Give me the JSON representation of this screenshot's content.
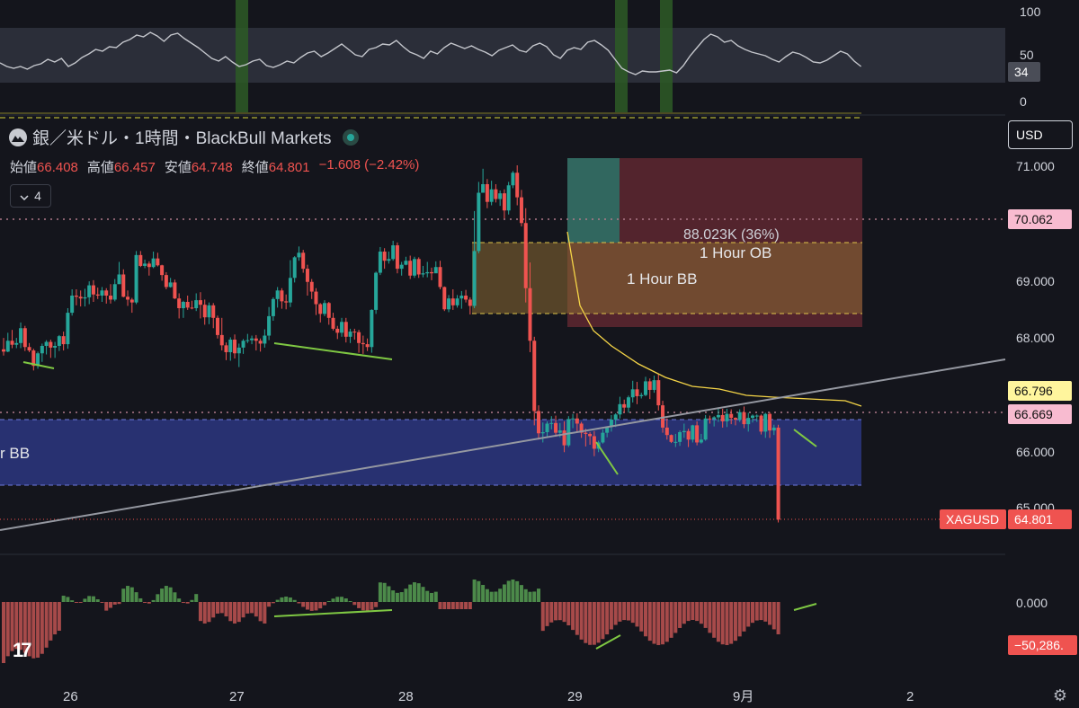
{
  "header": {
    "title": "銀／米ドル・1時間・BlackBull Markets",
    "ohlc": [
      {
        "label": "始値",
        "value": "66.408"
      },
      {
        "label": "高値",
        "value": "66.457"
      },
      {
        "label": "安値",
        "value": "64.748"
      },
      {
        "label": "終値",
        "value": "64.801"
      },
      {
        "label": "",
        "value": "−1.608 (−2.42%)"
      }
    ],
    "indicator_count": "4",
    "currency": "USD"
  },
  "chart_data": {
    "type": "candlestick",
    "symbol": "XAGUSD",
    "last_price": "64.801",
    "price_axis_ticks": [
      "71.000",
      "70.000",
      "69.000",
      "68.000",
      "66.000",
      "65.000"
    ],
    "price_badges": [
      {
        "text": "70.062",
        "value": 70.062,
        "color": "#f8bbd0",
        "text_color": "#111"
      },
      {
        "text": "66.796",
        "value": 66.796,
        "color": "#fff59d",
        "text_color": "#111"
      },
      {
        "text": "66.669",
        "value": 66.669,
        "color": "#f8bbd0",
        "text_color": "#111"
      }
    ],
    "x_ticks": [
      "26",
      "27",
      "28",
      "29",
      "9月",
      "2"
    ],
    "annotations": {
      "position_label": "88.023K (36%)",
      "ob_label": "1 Hour OB",
      "bb_label": "1 Hour BB",
      "lower_bb_label": "r BB"
    },
    "rsi": {
      "ticks": [
        "100",
        "50",
        "0"
      ],
      "last": "34"
    },
    "histogram": {
      "ticks": [
        "0.000"
      ],
      "last": "−50,286."
    },
    "candles": [
      [
        67.78,
        67.74,
        67.98,
        67.67
      ],
      [
        67.74,
        67.93,
        68.07,
        67.73
      ],
      [
        67.93,
        67.86,
        68.12,
        67.8
      ],
      [
        67.86,
        67.89,
        67.98,
        67.8
      ],
      [
        67.89,
        68.15,
        68.25,
        67.8
      ],
      [
        68.15,
        67.82,
        68.19,
        67.75
      ],
      [
        67.82,
        67.76,
        67.89,
        67.73
      ],
      [
        67.76,
        67.49,
        67.79,
        67.41
      ],
      [
        67.49,
        67.71,
        67.74,
        67.44
      ],
      [
        67.71,
        67.84,
        67.88,
        67.56
      ],
      [
        67.84,
        67.91,
        67.94,
        67.69
      ],
      [
        67.91,
        67.81,
        67.95,
        67.63
      ],
      [
        67.81,
        67.84,
        67.91,
        67.63
      ],
      [
        67.84,
        68.01,
        68.03,
        67.75
      ],
      [
        68.01,
        67.87,
        68.09,
        67.76
      ],
      [
        67.87,
        68.42,
        68.5,
        67.79
      ],
      [
        68.42,
        68.72,
        68.83,
        68.37
      ],
      [
        68.72,
        68.7,
        68.83,
        68.55
      ],
      [
        68.7,
        68.67,
        68.81,
        68.53
      ],
      [
        68.67,
        68.69,
        68.84,
        68.53
      ],
      [
        68.69,
        68.9,
        68.97,
        68.57
      ],
      [
        68.9,
        68.74,
        68.99,
        68.61
      ],
      [
        68.74,
        68.72,
        68.86,
        68.66
      ],
      [
        68.72,
        68.81,
        68.87,
        68.61
      ],
      [
        68.81,
        68.72,
        68.85,
        68.58
      ],
      [
        68.72,
        68.65,
        68.92,
        68.58
      ],
      [
        68.65,
        68.92,
        69.01,
        68.62
      ],
      [
        68.92,
        69.09,
        69.31,
        68.99
      ],
      [
        69.09,
        68.7,
        69.18,
        68.69
      ],
      [
        68.7,
        68.65,
        68.81,
        68.54
      ],
      [
        68.65,
        68.6,
        68.68,
        68.42
      ],
      [
        68.6,
        69.43,
        69.5,
        68.57
      ],
      [
        69.43,
        69.24,
        69.5,
        69.22
      ],
      [
        69.24,
        69.28,
        69.35,
        69.2
      ],
      [
        69.28,
        69.22,
        69.32,
        69.07
      ],
      [
        69.22,
        69.37,
        69.49,
        69.2
      ],
      [
        69.37,
        69.25,
        69.47,
        69.23
      ],
      [
        69.25,
        69.08,
        69.26,
        68.98
      ],
      [
        69.08,
        68.87,
        69.13,
        68.83
      ],
      [
        68.87,
        68.95,
        69.03,
        68.86
      ],
      [
        68.95,
        68.67,
        69.0,
        68.66
      ],
      [
        68.67,
        68.5,
        68.76,
        68.32
      ],
      [
        68.5,
        68.61,
        68.63,
        68.33
      ],
      [
        68.61,
        68.51,
        68.72,
        68.47
      ],
      [
        68.51,
        68.5,
        68.63,
        68.48
      ],
      [
        68.5,
        68.64,
        68.76,
        68.45
      ],
      [
        68.64,
        68.56,
        68.78,
        68.32
      ],
      [
        68.56,
        68.34,
        68.65,
        68.21
      ],
      [
        68.34,
        68.55,
        68.6,
        68.22
      ],
      [
        68.55,
        68.33,
        68.59,
        68.15
      ],
      [
        68.33,
        68.03,
        68.37,
        67.97
      ],
      [
        68.03,
        67.85,
        68.33,
        67.76
      ],
      [
        67.85,
        67.73,
        67.9,
        67.59
      ],
      [
        67.73,
        67.95,
        67.99,
        67.58
      ],
      [
        67.95,
        67.71,
        68.04,
        67.62
      ],
      [
        67.71,
        67.81,
        67.88,
        67.47
      ],
      [
        67.81,
        67.93,
        67.96,
        67.7
      ],
      [
        67.93,
        67.94,
        68.05,
        67.89
      ],
      [
        67.94,
        67.97,
        68.02,
        67.87
      ],
      [
        67.97,
        67.93,
        68.03,
        67.76
      ],
      [
        67.93,
        67.88,
        67.97,
        67.74
      ],
      [
        67.88,
        68.02,
        68.13,
        67.81
      ],
      [
        68.02,
        68.36,
        68.52,
        67.94
      ],
      [
        68.36,
        68.66,
        68.69,
        68.28
      ],
      [
        68.66,
        68.81,
        68.87,
        68.51
      ],
      [
        68.81,
        68.62,
        68.85,
        68.49
      ],
      [
        68.62,
        68.6,
        68.74,
        68.48
      ],
      [
        68.6,
        69.03,
        69.34,
        68.52
      ],
      [
        69.03,
        69.39,
        69.41,
        68.95
      ],
      [
        69.39,
        69.47,
        69.58,
        69.33
      ],
      [
        69.47,
        69.19,
        69.52,
        69.12
      ],
      [
        69.19,
        68.96,
        69.26,
        68.72
      ],
      [
        68.96,
        68.79,
        69.01,
        68.66
      ],
      [
        68.79,
        68.57,
        68.85,
        68.38
      ],
      [
        68.57,
        68.4,
        68.59,
        68.25
      ],
      [
        68.4,
        68.59,
        68.64,
        68.36
      ],
      [
        68.59,
        68.33,
        68.61,
        68.21
      ],
      [
        68.33,
        68.14,
        68.42,
        68.11
      ],
      [
        68.14,
        68.07,
        68.19,
        67.96
      ],
      [
        68.07,
        68.26,
        68.33,
        68.0
      ],
      [
        68.26,
        68.0,
        68.33,
        67.9
      ],
      [
        68.0,
        68.09,
        68.14,
        67.89
      ],
      [
        68.09,
        68.08,
        68.14,
        67.95
      ],
      [
        68.08,
        67.89,
        68.12,
        67.72
      ],
      [
        67.89,
        67.87,
        68.02,
        67.7
      ],
      [
        67.87,
        67.82,
        67.97,
        67.75
      ],
      [
        67.82,
        68.47,
        68.48,
        67.72
      ],
      [
        68.47,
        69.12,
        69.14,
        68.4
      ],
      [
        69.12,
        69.49,
        69.57,
        69.08
      ],
      [
        69.49,
        69.33,
        69.55,
        69.19
      ],
      [
        69.33,
        69.36,
        69.49,
        69.28
      ],
      [
        69.36,
        69.6,
        69.68,
        69.33
      ],
      [
        69.6,
        69.19,
        69.65,
        69.11
      ],
      [
        69.19,
        69.26,
        69.31,
        69.07
      ],
      [
        69.26,
        69.33,
        69.4,
        69.25
      ],
      [
        69.33,
        69.07,
        69.42,
        69.01
      ],
      [
        69.07,
        69.36,
        69.4,
        69.03
      ],
      [
        69.36,
        69.09,
        69.39,
        69.03
      ],
      [
        69.09,
        69.11,
        69.24,
        69.04
      ],
      [
        69.11,
        69.13,
        69.31,
        69.04
      ],
      [
        69.13,
        69.11,
        69.21,
        68.99
      ],
      [
        69.11,
        69.22,
        69.32,
        69.12
      ],
      [
        69.22,
        68.87,
        69.33,
        68.83
      ],
      [
        68.87,
        68.48,
        68.88,
        68.45
      ],
      [
        68.48,
        68.67,
        68.73,
        68.43
      ],
      [
        68.67,
        68.55,
        68.83,
        68.47
      ],
      [
        68.55,
        68.67,
        68.73,
        68.51
      ],
      [
        68.67,
        68.72,
        68.8,
        68.49
      ],
      [
        68.72,
        68.65,
        68.82,
        68.6
      ],
      [
        68.65,
        68.54,
        68.69,
        68.39
      ],
      [
        68.54,
        69.5,
        70.2,
        68.5
      ],
      [
        69.5,
        70.52,
        70.71,
        69.46
      ],
      [
        70.52,
        70.67,
        70.94,
        70.55
      ],
      [
        70.67,
        70.36,
        70.76,
        70.25
      ],
      [
        70.36,
        70.58,
        70.73,
        70.3
      ],
      [
        70.58,
        70.41,
        70.67,
        70.35
      ],
      [
        70.41,
        70.51,
        70.56,
        70.29
      ],
      [
        70.51,
        70.21,
        70.58,
        70.07
      ],
      [
        70.21,
        70.65,
        70.71,
        70.14
      ],
      [
        70.65,
        70.87,
        70.9,
        70.6
      ],
      [
        70.87,
        70.44,
        71.0,
        70.3
      ],
      [
        70.44,
        69.99,
        70.57,
        69.93
      ],
      [
        69.99,
        68.85,
        70.25,
        68.6
      ],
      [
        68.85,
        67.93,
        69.3,
        67.73
      ],
      [
        67.93,
        66.7,
        68.0,
        66.45
      ],
      [
        66.7,
        66.31,
        66.8,
        66.2
      ],
      [
        66.31,
        66.33,
        66.5,
        66.15
      ],
      [
        66.33,
        66.48,
        66.52,
        66.25
      ],
      [
        66.48,
        66.49,
        66.61,
        66.38
      ],
      [
        66.49,
        66.32,
        66.62,
        66.25
      ],
      [
        66.32,
        66.36,
        66.49,
        66.24
      ],
      [
        66.36,
        66.1,
        66.52,
        65.98
      ],
      [
        66.1,
        66.56,
        66.61,
        66.07
      ],
      [
        66.56,
        66.57,
        66.65,
        66.4
      ],
      [
        66.57,
        66.48,
        66.66,
        66.33
      ],
      [
        66.48,
        66.32,
        66.51,
        66.23
      ],
      [
        66.32,
        66.3,
        66.39,
        66.08
      ],
      [
        66.3,
        66.26,
        66.33,
        66.11
      ],
      [
        66.26,
        66.04,
        66.35,
        65.91
      ],
      [
        66.04,
        66.15,
        66.18,
        65.98
      ],
      [
        66.15,
        66.32,
        66.38,
        66.13
      ],
      [
        66.32,
        66.42,
        66.43,
        66.24
      ],
      [
        66.42,
        66.55,
        66.63,
        66.34
      ],
      [
        66.55,
        66.64,
        66.66,
        66.42
      ],
      [
        66.64,
        66.82,
        66.95,
        66.57
      ],
      [
        66.82,
        66.76,
        66.9,
        66.67
      ],
      [
        66.76,
        66.94,
        66.97,
        66.67
      ],
      [
        66.94,
        67.08,
        67.23,
        66.85
      ],
      [
        67.08,
        66.96,
        67.21,
        66.82
      ],
      [
        66.96,
        66.98,
        67.02,
        66.92
      ],
      [
        66.98,
        67.22,
        67.3,
        66.96
      ],
      [
        67.22,
        67.07,
        67.27,
        66.91
      ],
      [
        67.07,
        67.24,
        67.32,
        67.02
      ],
      [
        67.24,
        66.8,
        67.34,
        66.71
      ],
      [
        66.8,
        66.41,
        66.88,
        66.32
      ],
      [
        66.41,
        66.28,
        66.57,
        66.2
      ],
      [
        66.28,
        66.16,
        66.29,
        66.14
      ],
      [
        66.16,
        66.16,
        66.3,
        66.07
      ],
      [
        66.16,
        66.33,
        66.36,
        66.09
      ],
      [
        66.33,
        66.35,
        66.48,
        66.23
      ],
      [
        66.35,
        66.2,
        66.39,
        66.07
      ],
      [
        66.2,
        66.45,
        66.46,
        66.15
      ],
      [
        66.45,
        66.15,
        66.52,
        66.1
      ],
      [
        66.15,
        66.2,
        66.3,
        66.13
      ],
      [
        66.2,
        66.57,
        66.63,
        66.18
      ],
      [
        66.57,
        66.56,
        66.62,
        66.48
      ],
      [
        66.56,
        66.59,
        66.61,
        66.43
      ],
      [
        66.59,
        66.63,
        66.75,
        66.51
      ],
      [
        66.63,
        66.52,
        66.74,
        66.41
      ],
      [
        66.52,
        66.65,
        66.74,
        66.42
      ],
      [
        66.65,
        66.58,
        66.73,
        66.47
      ],
      [
        66.58,
        66.55,
        66.59,
        66.45
      ],
      [
        66.55,
        66.68,
        66.73,
        66.51
      ],
      [
        66.68,
        66.47,
        66.78,
        66.4
      ],
      [
        66.47,
        66.58,
        66.67,
        66.34
      ],
      [
        66.58,
        66.62,
        66.64,
        66.5
      ],
      [
        66.62,
        66.62,
        66.64,
        66.51
      ],
      [
        66.62,
        66.34,
        66.64,
        66.29
      ],
      [
        66.34,
        66.65,
        66.67,
        66.23
      ],
      [
        66.65,
        66.36,
        66.68,
        66.23
      ],
      [
        66.36,
        66.41,
        66.46,
        66.28
      ],
      [
        66.41,
        64.8,
        66.46,
        64.75
      ]
    ]
  },
  "colors": {
    "up": "#26a69a",
    "down": "#ef5350",
    "trendline": "#9598a1",
    "ma": "#f5d547"
  }
}
